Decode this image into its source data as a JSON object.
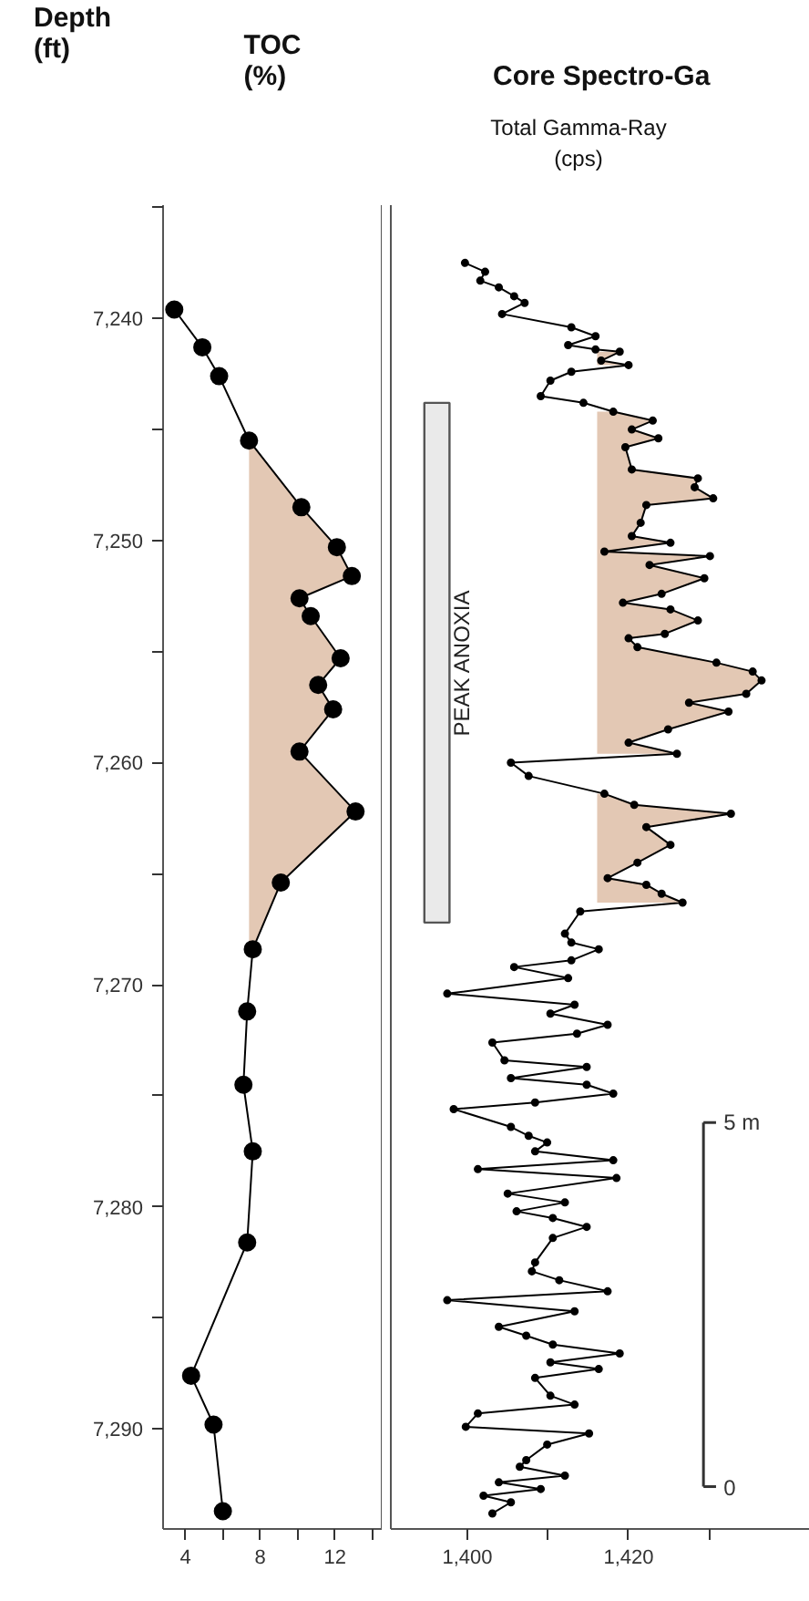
{
  "chart_data": [
    {
      "type": "line",
      "orientation": "horizontal",
      "xlabel": "TOC (%)",
      "ylabel": "Depth (ft)",
      "marker": "circle",
      "grid": false,
      "xlim": [
        2.8,
        14.5
      ],
      "xticks": [
        4,
        {
          "value": 6,
          "label": null
        },
        8,
        {
          "value": 10,
          "label": null
        },
        12,
        {
          "value": 14,
          "label": null
        }
      ],
      "ylim": [
        7294.5,
        7234.9
      ],
      "yticks": [
        {
          "value": 7235,
          "label": null
        },
        {
          "value": 7240,
          "label": "7,240"
        },
        {
          "value": 7245,
          "label": null
        },
        {
          "value": 7250,
          "label": "7,250"
        },
        {
          "value": 7255,
          "label": null
        },
        {
          "value": 7260,
          "label": "7,260"
        },
        {
          "value": 7265,
          "label": null
        },
        {
          "value": 7270,
          "label": "7,270"
        },
        {
          "value": 7275,
          "label": null
        },
        {
          "value": 7280,
          "label": "7,280"
        },
        {
          "value": 7285,
          "label": null
        },
        {
          "value": 7290,
          "label": "7,290"
        }
      ],
      "series": [
        {
          "color": "#000000",
          "x": [
            7239.6,
            7241.3,
            7242.6,
            7245.5,
            7248.5,
            7250.3,
            7251.6,
            7252.6,
            7253.4,
            7255.3,
            7256.5,
            7257.6,
            7259.5,
            7262.2,
            7265.4,
            7268.4,
            7271.2,
            7274.5,
            7277.5,
            7281.6,
            7287.6,
            7289.8,
            7293.7
          ],
          "values": [
            3.4,
            4.9,
            5.8,
            7.4,
            10.2,
            12.1,
            12.9,
            10.1,
            10.7,
            12.3,
            11.1,
            11.9,
            10.1,
            13.1,
            9.1,
            7.6,
            7.3,
            7.1,
            7.6,
            7.3,
            4.3,
            5.5,
            6.0
          ],
          "lower": [
            null,
            null,
            null,
            7.4,
            7.4,
            7.4,
            7.4,
            7.4,
            7.4,
            7.4,
            7.4,
            7.4,
            7.4,
            7.4,
            7.4,
            7.4,
            null,
            null,
            null,
            null,
            null,
            null,
            null
          ],
          "upper": [
            null,
            null,
            null,
            7.4,
            10.2,
            12.1,
            12.9,
            10.1,
            10.7,
            12.3,
            11.1,
            11.9,
            10.1,
            13.1,
            9.1,
            7.6,
            null,
            null,
            null,
            null,
            null,
            null,
            null
          ]
        }
      ]
    },
    {
      "type": "line",
      "orientation": "horizontal",
      "title": "Core Spectro-Ga",
      "xlabel": "Total Gamma-Ray (cps)",
      "marker": "circle",
      "grid": false,
      "tick_labels": "x",
      "xlim": [
        1390.5,
        1442.5
      ],
      "xticks": [
        {
          "value": 1400,
          "label": "1,400"
        },
        {
          "value": 1410,
          "label": null
        },
        {
          "value": 1420,
          "label": "1,420"
        },
        {
          "value": 1430,
          "label": null
        }
      ],
      "ylim": [
        7294.5,
        7234.9
      ],
      "annotations": [
        "5 m",
        "0"
      ],
      "bands": [
        {
          "axis": "y",
          "from": 7243.8,
          "to": 7267.2,
          "label": "PEAK ANOXIA"
        }
      ],
      "series": [
        {
          "color": "#000000",
          "x": [
            7237.5,
            7237.9,
            7238.3,
            7238.6,
            7239.0,
            7239.3,
            7239.8,
            7240.4,
            7240.8,
            7241.2,
            7241.4,
            7241.5,
            7241.9,
            7242.1,
            7242.4,
            7242.8,
            7243.5,
            7243.8,
            7244.2,
            7244.6,
            7245.0,
            7245.4,
            7245.8,
            7246.8,
            7247.2,
            7247.6,
            7248.1,
            7248.4,
            7249.2,
            7249.8,
            7250.1,
            7250.5,
            7250.7,
            7251.1,
            7251.7,
            7252.4,
            7252.8,
            7253.1,
            7253.6,
            7254.2,
            7254.4,
            7254.8,
            7255.5,
            7255.9,
            7256.3,
            7256.9,
            7257.3,
            7257.7,
            7258.5,
            7259.1,
            7259.6,
            7260.0,
            7260.6,
            7261.4,
            7261.9,
            7262.3,
            7262.9,
            7263.7,
            7264.5,
            7265.2,
            7265.5,
            7265.9,
            7266.3,
            7266.7,
            7267.7,
            7268.1,
            7268.4,
            7268.9,
            7269.2,
            7269.7,
            7270.4,
            7270.9,
            7271.3,
            7271.8,
            7272.2,
            7272.6,
            7273.4,
            7273.7,
            7274.2,
            7274.5,
            7274.9,
            7275.3,
            7275.6,
            7276.4,
            7276.8,
            7277.1,
            7277.5,
            7277.9,
            7278.3,
            7278.7,
            7279.4,
            7279.8,
            7280.2,
            7280.5,
            7280.9,
            7281.4,
            7282.5,
            7282.9,
            7283.3,
            7283.8,
            7284.2,
            7284.7,
            7285.4,
            7285.8,
            7286.2,
            7286.6,
            7287.0,
            7287.3,
            7287.7,
            7288.5,
            7288.9,
            7289.3,
            7289.9,
            7290.2,
            7290.7,
            7291.4,
            7291.7,
            7292.1,
            7292.4,
            7292.7,
            7293.0,
            7293.3,
            7293.8
          ],
          "values": [
            1399.7,
            1402.2,
            1401.6,
            1403.9,
            1405.8,
            1407.1,
            1404.3,
            1412.9,
            1415.9,
            1412.5,
            1415.9,
            1418.9,
            1416.6,
            1420.0,
            1412.9,
            1410.3,
            1409.1,
            1414.4,
            1418.1,
            1423.0,
            1420.4,
            1423.7,
            1419.6,
            1420.4,
            1428.6,
            1428.2,
            1430.5,
            1422.2,
            1421.5,
            1420.4,
            1425.2,
            1417.0,
            1430.1,
            1422.6,
            1429.4,
            1424.1,
            1419.3,
            1425.2,
            1428.6,
            1424.5,
            1420.0,
            1421.1,
            1430.9,
            1435.4,
            1436.5,
            1434.6,
            1427.5,
            1432.4,
            1424.9,
            1420.0,
            1426.0,
            1405.4,
            1407.6,
            1417.0,
            1420.7,
            1432.7,
            1422.2,
            1425.2,
            1421.1,
            1417.4,
            1422.2,
            1424.1,
            1426.7,
            1414.0,
            1412.1,
            1412.9,
            1416.3,
            1412.9,
            1405.8,
            1412.5,
            1397.5,
            1413.3,
            1410.3,
            1417.4,
            1413.6,
            1403.1,
            1404.6,
            1414.8,
            1405.4,
            1414.8,
            1418.1,
            1408.4,
            1398.3,
            1405.4,
            1407.6,
            1409.9,
            1408.4,
            1418.1,
            1401.3,
            1418.5,
            1405.0,
            1412.1,
            1406.1,
            1410.6,
            1414.8,
            1410.6,
            1408.4,
            1408.0,
            1411.4,
            1417.4,
            1397.5,
            1413.3,
            1403.9,
            1407.3,
            1410.6,
            1418.9,
            1410.3,
            1416.3,
            1408.4,
            1410.3,
            1413.3,
            1401.3,
            1399.8,
            1415.1,
            1409.9,
            1407.3,
            1406.5,
            1412.1,
            1403.9,
            1409.1,
            1402.0,
            1405.4,
            1403.1
          ],
          "lower": [
            null,
            null,
            null,
            null,
            null,
            null,
            null,
            null,
            null,
            null,
            null,
            1416.1,
            1416.1,
            1416.1,
            null,
            null,
            null,
            null,
            1416.1,
            1416.1,
            1416.1,
            1416.1,
            1416.1,
            1416.1,
            1416.1,
            1416.1,
            1416.1,
            1416.1,
            1416.1,
            1416.1,
            1416.1,
            1416.1,
            1416.1,
            1416.1,
            1416.1,
            1416.1,
            1416.1,
            1416.1,
            1416.1,
            1416.1,
            1416.1,
            1416.1,
            1416.1,
            1416.1,
            1416.1,
            1416.1,
            1416.1,
            1416.1,
            1416.1,
            1416.1,
            1416.1,
            null,
            null,
            1416.1,
            1416.1,
            1416.1,
            1416.1,
            1416.1,
            1416.1,
            1416.1,
            1416.1,
            1416.1,
            1416.1,
            null,
            null,
            null,
            null,
            null,
            null,
            null,
            null,
            null,
            null,
            null,
            null,
            null,
            null,
            null,
            null,
            null,
            null,
            null,
            null,
            null,
            null,
            null,
            null,
            null,
            null,
            null,
            null,
            null,
            null,
            null,
            null,
            null,
            null,
            null,
            null,
            null,
            null,
            null,
            null,
            null,
            null,
            null,
            null,
            null,
            null,
            null,
            null,
            null,
            null,
            null,
            null,
            null,
            null,
            null,
            null,
            null,
            null,
            null,
            null
          ],
          "upper": [
            null,
            null,
            null,
            null,
            null,
            null,
            null,
            null,
            null,
            null,
            null,
            1418.9,
            1416.6,
            1420.0,
            null,
            null,
            null,
            null,
            1418.1,
            1423.0,
            1420.4,
            1423.7,
            1419.6,
            1420.4,
            1428.6,
            1428.2,
            1430.5,
            1422.2,
            1421.5,
            1420.4,
            1425.2,
            1417.0,
            1430.1,
            1422.6,
            1429.4,
            1424.1,
            1419.3,
            1425.2,
            1428.6,
            1424.5,
            1420.0,
            1421.1,
            1430.9,
            1435.4,
            1436.5,
            1434.6,
            1427.5,
            1432.4,
            1424.9,
            1420.0,
            1426.0,
            null,
            null,
            1417.0,
            1420.7,
            1432.7,
            1422.2,
            1425.2,
            1421.1,
            1417.4,
            1422.2,
            1424.1,
            1426.7,
            null,
            null,
            null,
            null,
            null,
            null,
            null,
            null,
            null,
            null,
            null,
            null,
            null,
            null,
            null,
            null,
            null,
            null,
            null,
            null,
            null,
            null,
            null,
            null,
            null,
            null,
            null,
            null,
            null,
            null,
            null,
            null,
            null,
            null,
            null,
            null,
            null,
            null,
            null,
            null,
            null,
            null,
            null,
            null,
            null,
            null,
            null,
            null,
            null,
            null,
            null,
            null,
            null,
            null,
            null,
            null,
            null,
            null,
            null,
            null
          ]
        }
      ]
    }
  ]
}
